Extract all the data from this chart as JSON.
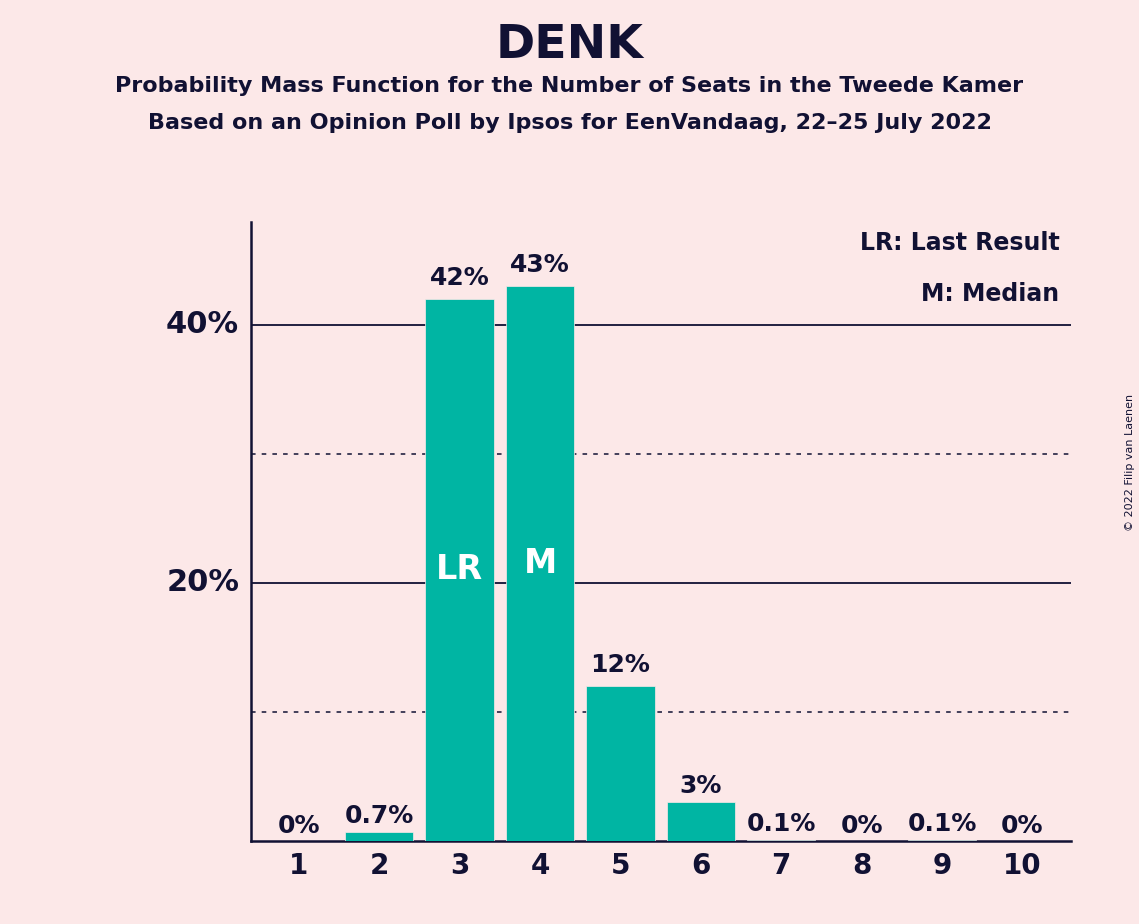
{
  "title": "DENK",
  "subtitle1": "Probability Mass Function for the Number of Seats in the Tweede Kamer",
  "subtitle2": "Based on an Opinion Poll by Ipsos for EenVandaag, 22–25 July 2022",
  "copyright": "© 2022 Filip van Laenen",
  "seats": [
    1,
    2,
    3,
    4,
    5,
    6,
    7,
    8,
    9,
    10
  ],
  "values": [
    0.0,
    0.7,
    42.0,
    43.0,
    12.0,
    3.0,
    0.1,
    0.0,
    0.1,
    0.0
  ],
  "labels": [
    "0%",
    "0.7%",
    "42%",
    "43%",
    "12%",
    "3%",
    "0.1%",
    "0%",
    "0.1%",
    "0%"
  ],
  "bar_color": "#00b5a3",
  "background_color": "#fce8e8",
  "text_color": "#111133",
  "lr_seat": 3,
  "m_seat": 4,
  "legend_lr": "LR: Last Result",
  "legend_m": "M: Median",
  "ylim_max": 48,
  "dotted_lines": [
    10,
    30
  ],
  "solid_lines": [
    20,
    40
  ],
  "title_fontsize": 34,
  "subtitle_fontsize": 16,
  "bar_label_fontsize": 18,
  "axis_tick_fontsize": 20,
  "ytick_fontsize": 22,
  "legend_fontsize": 17,
  "inline_label_fontsize": 24,
  "copyright_fontsize": 8
}
